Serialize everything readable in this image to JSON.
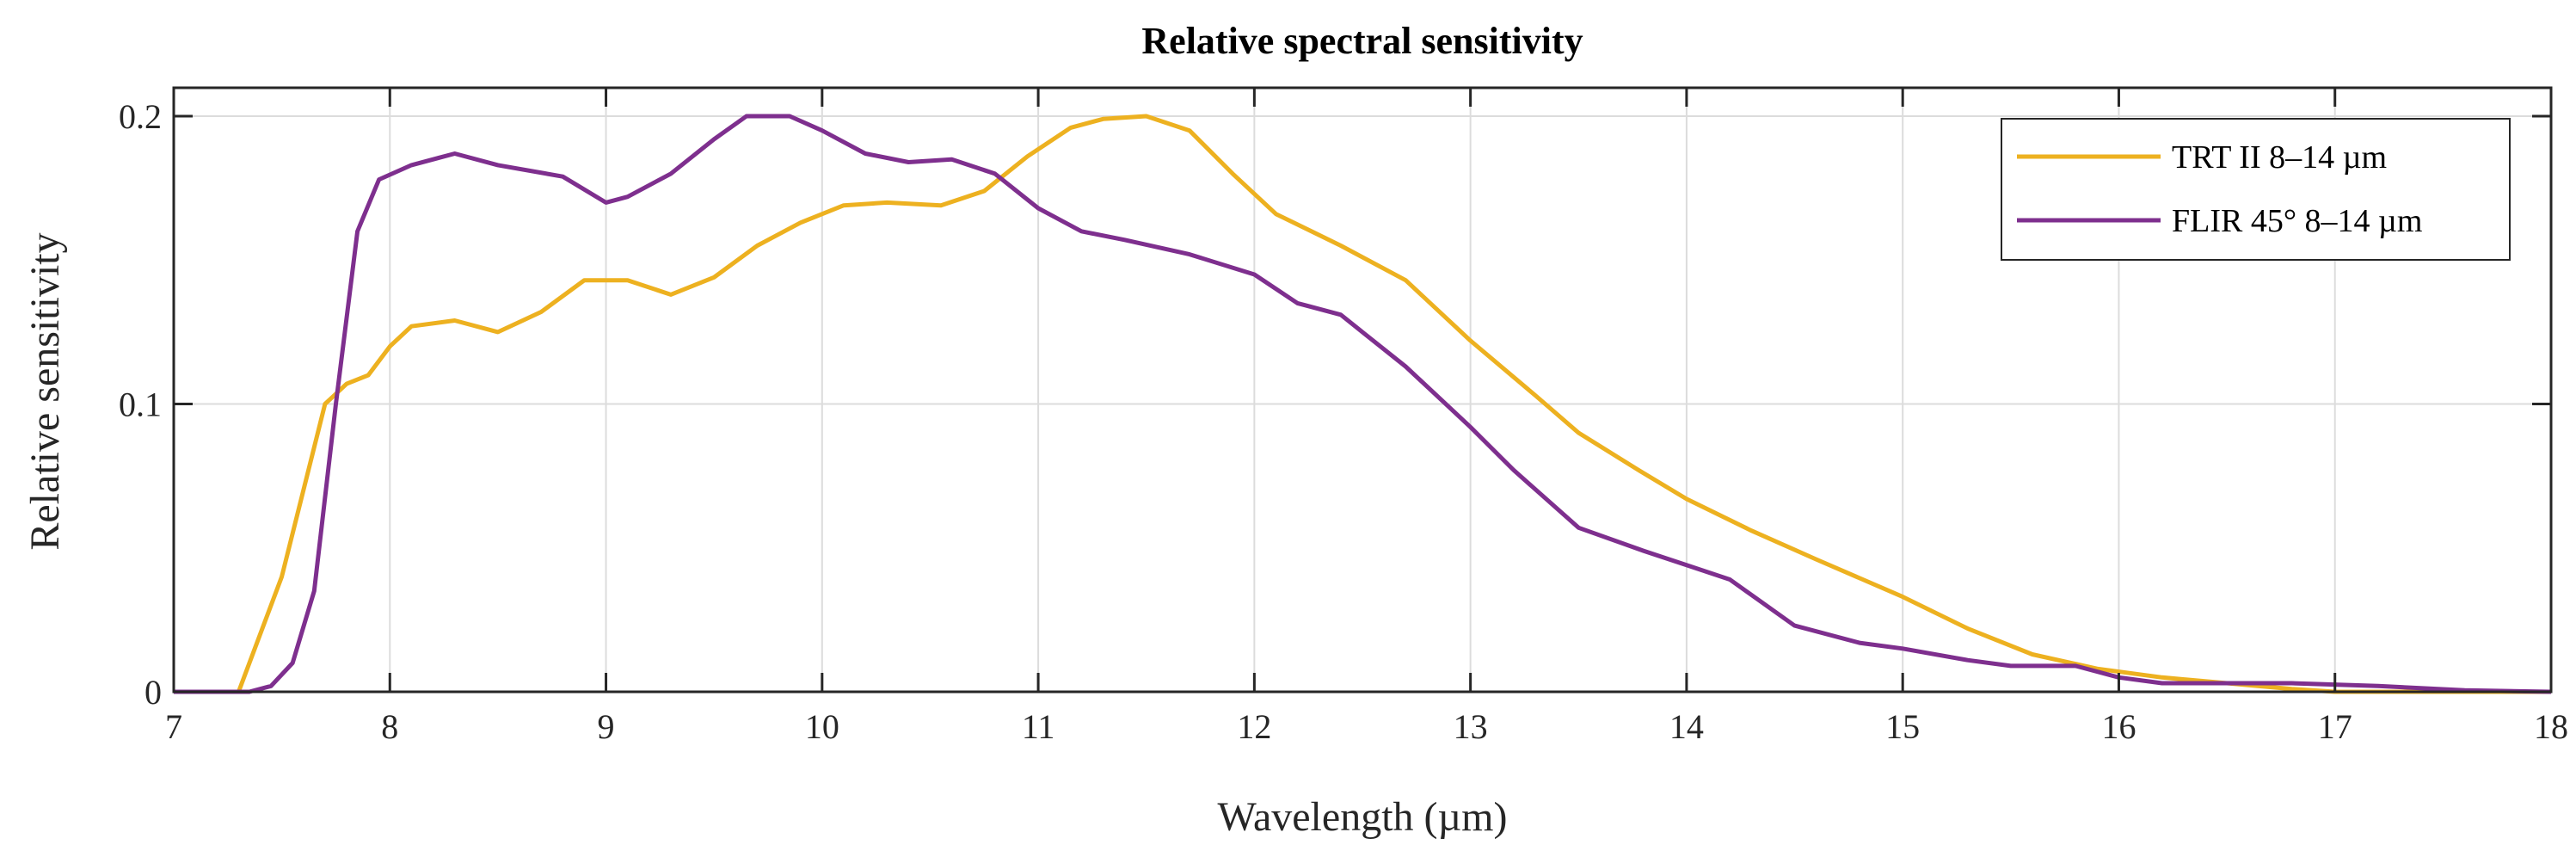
{
  "chart_data": {
    "type": "line",
    "title": "Relative spectral sensitivity",
    "xlabel": "Wavelength (µm)",
    "ylabel": "Relative sensitivity",
    "xlim": [
      7,
      18
    ],
    "ylim": [
      0,
      0.2
    ],
    "xticks": [
      "7",
      "8",
      "9",
      "10",
      "11",
      "12",
      "13",
      "14",
      "15",
      "16",
      "17",
      "18"
    ],
    "xtick_values": [
      7,
      8,
      9,
      10,
      11,
      12,
      13,
      14,
      15,
      16,
      17,
      18
    ],
    "yticks": [
      "0",
      "0.1",
      "0.2"
    ],
    "ytick_values": [
      0,
      0.1,
      0.2
    ],
    "grid": true,
    "legend_position": "top-right",
    "series": [
      {
        "name": "TRT II 8–14 µm",
        "color": "#EDB120",
        "x": [
          7,
          7.3,
          7.5,
          7.7,
          7.8,
          7.9,
          8.0,
          8.1,
          8.3,
          8.5,
          8.7,
          8.9,
          9.1,
          9.3,
          9.5,
          9.7,
          9.9,
          10.1,
          10.3,
          10.55,
          10.75,
          10.95,
          11.15,
          11.3,
          11.5,
          11.7,
          11.9,
          12.1,
          12.4,
          12.7,
          13.0,
          13.3,
          13.5,
          13.8,
          14.0,
          14.3,
          14.6,
          15.0,
          15.3,
          15.6,
          15.9,
          16.2,
          16.5,
          16.8,
          17.0,
          18.0
        ],
        "y": [
          0,
          0,
          0.04,
          0.1,
          0.107,
          0.11,
          0.12,
          0.127,
          0.129,
          0.125,
          0.132,
          0.143,
          0.143,
          0.138,
          0.144,
          0.155,
          0.163,
          0.169,
          0.17,
          0.169,
          0.174,
          0.186,
          0.196,
          0.199,
          0.2,
          0.195,
          0.18,
          0.166,
          0.155,
          0.143,
          0.122,
          0.103,
          0.09,
          0.076,
          0.067,
          0.056,
          0.046,
          0.033,
          0.022,
          0.013,
          0.008,
          0.005,
          0.003,
          0.001,
          0,
          0
        ]
      },
      {
        "name": "FLIR 45° 8–14 µm",
        "color": "#7E2F8E",
        "x": [
          7,
          7.35,
          7.45,
          7.55,
          7.65,
          7.75,
          7.85,
          7.95,
          8.1,
          8.3,
          8.5,
          8.8,
          9.0,
          9.1,
          9.3,
          9.5,
          9.65,
          9.85,
          10.0,
          10.2,
          10.4,
          10.6,
          10.8,
          11.0,
          11.2,
          11.4,
          11.7,
          12.0,
          12.2,
          12.4,
          12.5,
          12.7,
          13.0,
          13.2,
          13.5,
          13.8,
          14.0,
          14.2,
          14.5,
          14.8,
          15.0,
          15.3,
          15.5,
          15.8,
          16.0,
          16.2,
          16.5,
          16.8,
          17.2,
          17.6,
          18.0
        ],
        "y": [
          0,
          0,
          0.002,
          0.01,
          0.035,
          0.1,
          0.16,
          0.178,
          0.183,
          0.187,
          0.183,
          0.179,
          0.17,
          0.172,
          0.18,
          0.192,
          0.2,
          0.2,
          0.195,
          0.187,
          0.184,
          0.185,
          0.18,
          0.168,
          0.16,
          0.157,
          0.152,
          0.145,
          0.135,
          0.131,
          0.125,
          0.113,
          0.092,
          0.077,
          0.057,
          0.049,
          0.044,
          0.039,
          0.023,
          0.017,
          0.015,
          0.011,
          0.009,
          0.009,
          0.005,
          0.003,
          0.003,
          0.003,
          0.002,
          0.0005,
          0
        ]
      }
    ]
  }
}
